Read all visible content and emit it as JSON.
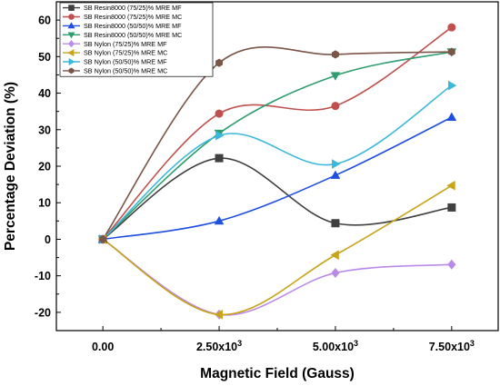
{
  "chart_data": {
    "type": "line",
    "title": "",
    "xlabel": "Magnetic Field (Gauss)",
    "ylabel": "Percentage Deviation (%)",
    "x": [
      0,
      2500,
      5000,
      7500
    ],
    "x_tick_labels": [
      "0.00",
      "2.50x10",
      "5.00x10",
      "7.50x10"
    ],
    "x_tick_exponent": "3",
    "xlim": [
      -1000,
      8500
    ],
    "ylim": [
      -25,
      65
    ],
    "y_ticks": [
      -20,
      -10,
      0,
      10,
      20,
      30,
      40,
      50,
      60
    ],
    "grid": false,
    "legend_position": "top-left",
    "series": [
      {
        "name": "SB Resin8000 (75/25)% MRE MF",
        "color": "#404040",
        "marker": "square",
        "values": [
          0,
          22.2,
          4.4,
          8.7
        ]
      },
      {
        "name": "SB Resin8000 (75/25)% MRE MC",
        "color": "#C0504D",
        "marker": "circle",
        "values": [
          0,
          34.4,
          36.5,
          58.0
        ]
      },
      {
        "name": "SB Resin8000 (50/50)% MRE MF",
        "color": "#1F4FE0",
        "marker": "triangle-up",
        "values": [
          0,
          5.0,
          17.5,
          33.4
        ]
      },
      {
        "name": "SB Resin8000 (50/50)% MRE MC",
        "color": "#2E9E6E",
        "marker": "triangle-down",
        "values": [
          0,
          29.0,
          44.8,
          51.3
        ]
      },
      {
        "name": "SB Nylon (75/25)% MRE MF",
        "color": "#B98AE8",
        "marker": "diamond",
        "values": [
          0,
          -20.6,
          -9.2,
          -6.9
        ]
      },
      {
        "name": "SB Nylon (75/25)% MRE MC",
        "color": "#C9A418",
        "marker": "triangle-left",
        "values": [
          0,
          -20.6,
          -4.3,
          14.7
        ]
      },
      {
        "name": "SB Nylon (50/50)% MRE MF",
        "color": "#3CB8DA",
        "marker": "triangle-right",
        "values": [
          0,
          28.4,
          20.6,
          42.1
        ]
      },
      {
        "name": "SB Nylon (50/50)% MRE MC",
        "color": "#7A5548",
        "marker": "hexagon",
        "values": [
          0,
          48.3,
          50.6,
          51.3
        ]
      }
    ]
  }
}
